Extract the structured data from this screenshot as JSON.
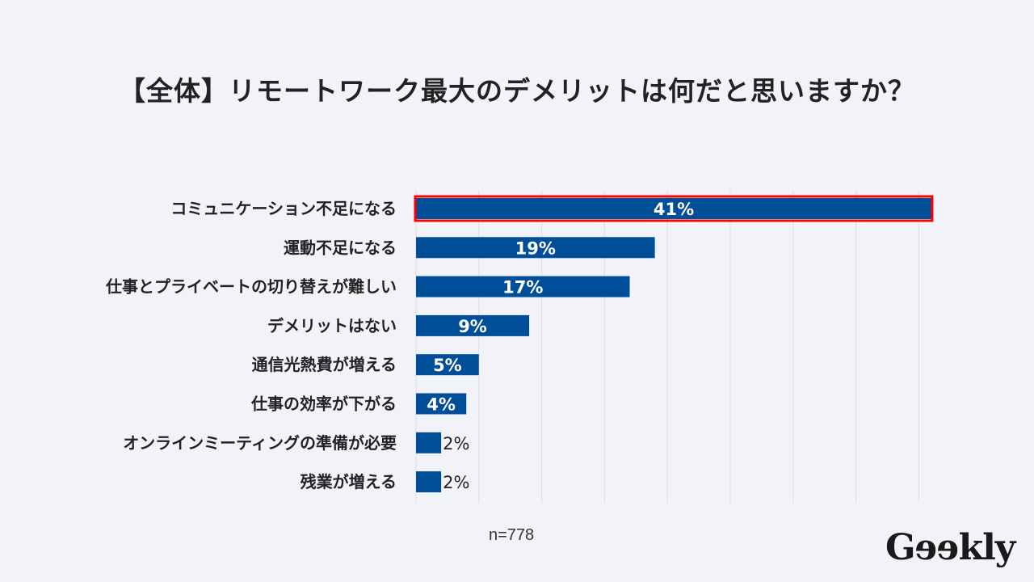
{
  "chart_data": {
    "type": "bar",
    "orientation": "horizontal",
    "title": "【全体】リモートワーク最大のデメリットは何だと思いますか？",
    "categories": [
      "コミュニケーション不足になる",
      "運動不足になる",
      "仕事とプライベートの切り替えが難しい",
      "デメリットはない",
      "通信光熱費が増える",
      "仕事の効率が下がる",
      "オンラインミーティングの準備が必要",
      "残業が増える"
    ],
    "values": [
      41,
      19,
      17,
      9,
      5,
      4,
      2,
      2
    ],
    "value_labels": [
      "41%",
      "19%",
      "17%",
      "9%",
      "5%",
      "4%",
      "2%",
      "2%"
    ],
    "highlighted": [
      "コミュニケーション不足になる"
    ],
    "xlim": [
      0,
      42
    ],
    "grid": true,
    "grid_step": 5,
    "xlabel": "",
    "ylabel": "",
    "note": "n=778",
    "colors": {
      "bar": "#004e98",
      "highlight_border": "#ff0000",
      "grid": "#dcdde3"
    }
  },
  "logo": "Geekly"
}
